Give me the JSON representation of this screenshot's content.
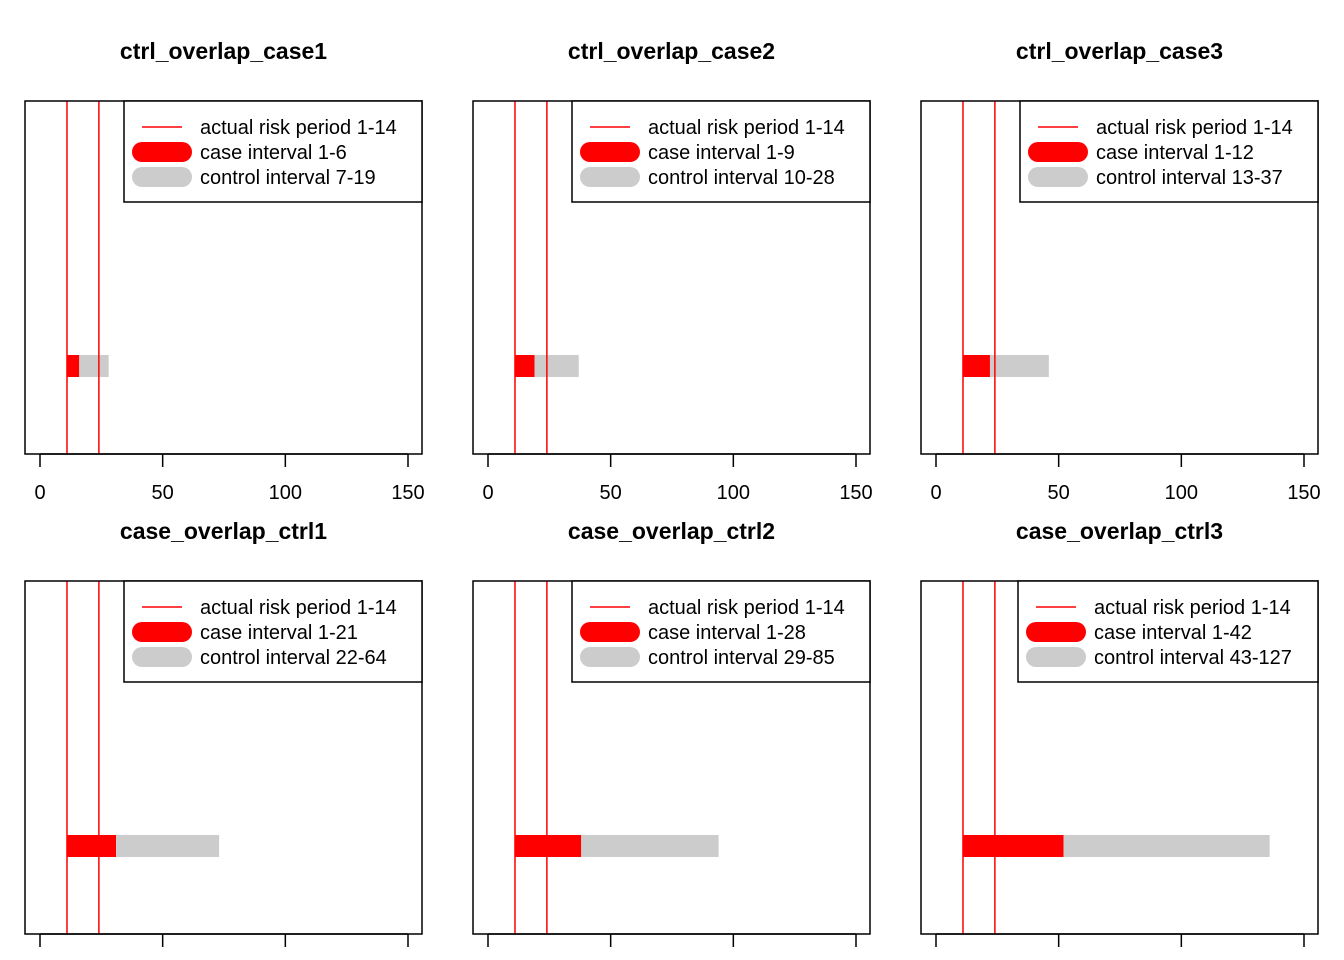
{
  "colors": {
    "risk_line": "#ff0000",
    "case_bar": "#ff0000",
    "control_bar": "#cccccc",
    "frame": "#000000"
  },
  "chart_data": [
    {
      "type": "bar",
      "title": "ctrl_overlap_case1",
      "xlim": [
        0,
        150
      ],
      "x_ticks": [
        0,
        50,
        100,
        150
      ],
      "x_tick_labels": [
        "0",
        "50",
        "100",
        "150"
      ],
      "risk_lines": [
        11,
        24
      ],
      "case_interval": [
        11,
        16
      ],
      "control_interval": [
        16,
        28
      ],
      "legend_position": "top-right",
      "legend": [
        "actual risk period 1-14",
        "case interval 1-6",
        "control interval 7-19"
      ]
    },
    {
      "type": "bar",
      "title": "ctrl_overlap_case2",
      "xlim": [
        0,
        150
      ],
      "x_ticks": [
        0,
        50,
        100,
        150
      ],
      "x_tick_labels": [
        "0",
        "50",
        "100",
        "150"
      ],
      "risk_lines": [
        11,
        24
      ],
      "case_interval": [
        11,
        19
      ],
      "control_interval": [
        19,
        37
      ],
      "legend_position": "top-right",
      "legend": [
        "actual risk period 1-14",
        "case interval 1-9",
        "control interval 10-28"
      ]
    },
    {
      "type": "bar",
      "title": "ctrl_overlap_case3",
      "xlim": [
        0,
        150
      ],
      "x_ticks": [
        0,
        50,
        100,
        150
      ],
      "x_tick_labels": [
        "0",
        "50",
        "100",
        "150"
      ],
      "risk_lines": [
        11,
        24
      ],
      "case_interval": [
        11,
        22
      ],
      "control_interval": [
        22,
        46
      ],
      "legend_position": "top-right",
      "legend": [
        "actual risk period 1-14",
        "case interval 1-12",
        "control interval 13-37"
      ]
    },
    {
      "type": "bar",
      "title": "case_overlap_ctrl1",
      "xlim": [
        0,
        150
      ],
      "x_ticks": [
        0,
        50,
        100,
        150
      ],
      "x_tick_labels": [],
      "risk_lines": [
        11,
        24
      ],
      "case_interval": [
        11,
        31
      ],
      "control_interval": [
        31,
        73
      ],
      "legend_position": "top-right",
      "legend": [
        "actual risk period 1-14",
        "case interval 1-21",
        "control interval 22-64"
      ]
    },
    {
      "type": "bar",
      "title": "case_overlap_ctrl2",
      "xlim": [
        0,
        150
      ],
      "x_ticks": [
        0,
        50,
        100,
        150
      ],
      "x_tick_labels": [],
      "risk_lines": [
        11,
        24
      ],
      "case_interval": [
        11,
        38
      ],
      "control_interval": [
        38,
        94
      ],
      "legend_position": "top-right",
      "legend": [
        "actual risk period 1-14",
        "case interval 1-28",
        "control interval 29-85"
      ]
    },
    {
      "type": "bar",
      "title": "case_overlap_ctrl3",
      "xlim": [
        0,
        150
      ],
      "x_ticks": [
        0,
        50,
        100,
        150
      ],
      "x_tick_labels": [],
      "risk_lines": [
        11,
        24
      ],
      "case_interval": [
        11,
        52
      ],
      "control_interval": [
        52,
        136
      ],
      "legend_position": "top-right",
      "legend": [
        "actual risk period 1-14",
        "case interval 1-42",
        "control interval 43-127"
      ]
    }
  ]
}
